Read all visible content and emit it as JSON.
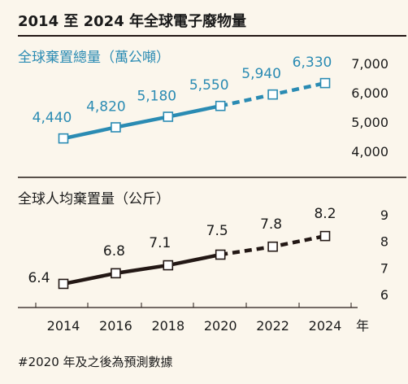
{
  "title": "2014 至 2024 年全球電子廢物量",
  "footnote": "#2020 年及之後為預測數據",
  "x_unit": "年",
  "colors": {
    "blue": "#2a8bb3",
    "dark": "#231815",
    "background": "#fbf6ec"
  },
  "chart_data": [
    {
      "type": "line",
      "title": "全球棄置總量（萬公噸）",
      "x": [
        2014,
        2016,
        2018,
        2020,
        2022,
        2024
      ],
      "values": [
        4440,
        4820,
        5180,
        5550,
        5940,
        6330
      ],
      "value_labels": [
        "4,440",
        "4,820",
        "5,180",
        "5,550",
        "5,940",
        "6,330"
      ],
      "y_ticks": [
        "7,000",
        "6,000",
        "5,000",
        "4,000"
      ],
      "ylim": [
        4000,
        7000
      ],
      "forecast_from": 2020,
      "color": "#2a8bb3",
      "grid": false
    },
    {
      "type": "line",
      "title": "全球人均棄置量（公斤）",
      "x": [
        2014,
        2016,
        2018,
        2020,
        2022,
        2024
      ],
      "values": [
        6.4,
        6.8,
        7.1,
        7.5,
        7.8,
        8.2
      ],
      "value_labels": [
        "6.4",
        "6.8",
        "7.1",
        "7.5",
        "7.8",
        "8.2"
      ],
      "y_ticks": [
        "9",
        "8",
        "7",
        "6"
      ],
      "ylim": [
        6,
        9
      ],
      "forecast_from": 2020,
      "color": "#231815",
      "grid": false
    }
  ],
  "x_tick_labels": [
    "2014",
    "2016",
    "2018",
    "2020",
    "2022",
    "2024"
  ]
}
